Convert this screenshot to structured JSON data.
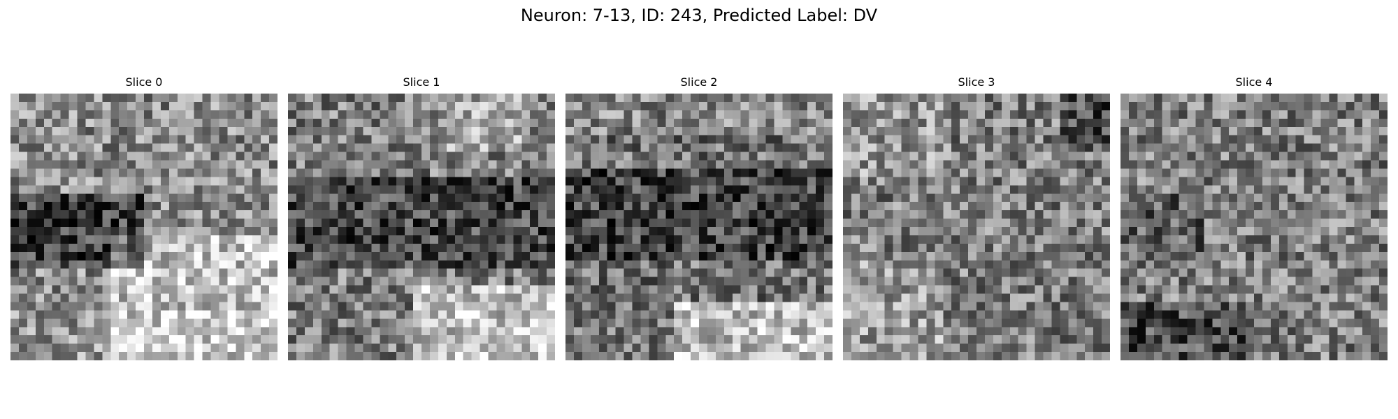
{
  "figure": {
    "title": "Neuron: 7-13, ID: 243, Predicted Label: DV"
  },
  "colormap": "gray",
  "panels": [
    {
      "title": "Slice 0"
    },
    {
      "title": "Slice 1"
    },
    {
      "title": "Slice 2"
    },
    {
      "title": "Slice 3"
    },
    {
      "title": "Slice 4"
    }
  ]
}
